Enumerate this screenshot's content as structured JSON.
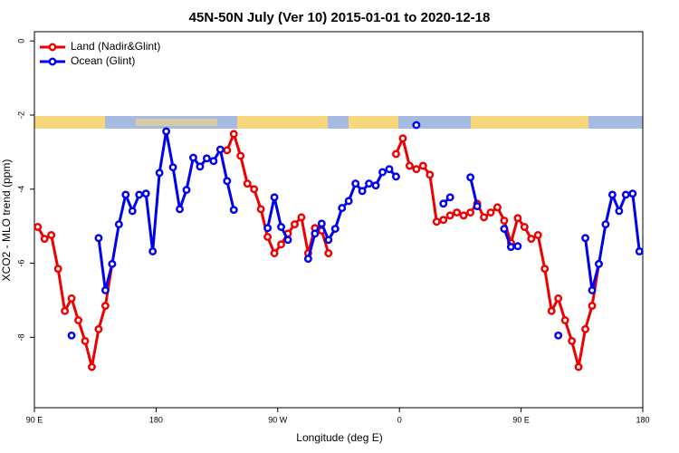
{
  "chart_data": {
    "type": "line",
    "title": "45N-50N July (Ver 10)   2015-01-01 to 2020-12-18",
    "x_label": "Longitude (deg E)",
    "y_label": "XCO2 - MLO trend (ppm)",
    "x": [
      92.5,
      97.5,
      102.5,
      107.5,
      112.5,
      117.5,
      122.5,
      127.5,
      132.5,
      137.5,
      142.5,
      147.5,
      152.5,
      157.5,
      162.5,
      167.5,
      172.5,
      177.5,
      182.5,
      187.5,
      192.5,
      197.5,
      202.5,
      207.5,
      212.5,
      217.5,
      222.5,
      227.5,
      232.5,
      237.5,
      242.5,
      247.5,
      252.5,
      257.5,
      262.5,
      267.5,
      272.5,
      277.5,
      282.5,
      287.5,
      292.5,
      297.5,
      302.5,
      307.5,
      312.5,
      317.5,
      322.5,
      327.5,
      332.5,
      337.5,
      342.5,
      347.5,
      352.5,
      357.5,
      362.5,
      367.5,
      372.5,
      377.5,
      382.5,
      387.5,
      392.5,
      397.5,
      402.5,
      407.5,
      412.5,
      417.5,
      422.5,
      427.5,
      432.5,
      437.5,
      442.5,
      447.5,
      452.5,
      457.5,
      462.5,
      467.5,
      472.5,
      477.5,
      482.5,
      487.5,
      492.5,
      497.5,
      502.5,
      507.5,
      512.5,
      517.5,
      522.5,
      527.5,
      532.5,
      537.5
    ],
    "series": [
      {
        "name": "Land (Nadir&Glint)",
        "color": "#ee0000",
        "values": [
          -5.02,
          -5.34,
          -5.24,
          -6.15,
          -7.29,
          -6.95,
          -7.54,
          -8.1,
          -8.8,
          -7.78,
          -7.15,
          -6.02,
          null,
          null,
          null,
          null,
          null,
          null,
          null,
          null,
          null,
          null,
          null,
          null,
          null,
          null,
          null,
          null,
          -2.95,
          -2.51,
          -3.1,
          -3.85,
          -4.0,
          -4.54,
          -5.29,
          -5.73,
          -5.49,
          -5.2,
          -4.95,
          -4.76,
          -5.73,
          -5.05,
          -5.12,
          -5.73,
          null,
          null,
          null,
          null,
          null,
          null,
          null,
          null,
          null,
          -3.05,
          -2.63,
          -3.37,
          -3.46,
          -3.37,
          -3.61,
          -4.88,
          -4.83,
          -4.71,
          -4.63,
          -4.71,
          -4.63,
          -4.39,
          -4.76,
          -4.63,
          -4.49,
          -4.85,
          -5.45,
          -4.78,
          -5.02,
          -5.34,
          -5.24,
          -6.15,
          -7.29,
          -6.95,
          -7.54,
          -8.1,
          -8.8,
          -7.78,
          -7.15,
          -6.02,
          null,
          null,
          null,
          null,
          null,
          null
        ]
      },
      {
        "name": "Ocean (Glint)",
        "color": "#0000ee",
        "values": [
          null,
          null,
          null,
          null,
          null,
          -7.95,
          null,
          null,
          null,
          -5.32,
          -6.73,
          -6.02,
          -4.95,
          -4.15,
          -4.59,
          -4.15,
          -4.12,
          -5.68,
          -3.56,
          -2.44,
          -3.41,
          -4.54,
          -4.02,
          -3.15,
          -3.39,
          -3.17,
          -3.24,
          -2.93,
          -3.78,
          -4.56,
          null,
          null,
          null,
          null,
          -5.05,
          -4.22,
          -5.02,
          -5.37,
          null,
          null,
          -5.88,
          -5.2,
          -4.93,
          -5.37,
          -5.07,
          -4.51,
          -4.32,
          -3.85,
          -4.05,
          -3.85,
          -3.9,
          -3.54,
          -3.46,
          -3.66,
          null,
          null,
          -2.27,
          null,
          null,
          null,
          -4.39,
          -4.22,
          null,
          null,
          -3.68,
          -4.46,
          null,
          null,
          null,
          -5.07,
          -5.56,
          -5.54,
          null,
          null,
          null,
          null,
          null,
          -7.95,
          null,
          null,
          null,
          -5.32,
          -6.73,
          -6.02,
          -4.95,
          -4.15,
          -4.59,
          -4.15,
          -4.12,
          -5.68
        ]
      }
    ],
    "xlim": [
      90,
      540
    ],
    "xticks": [
      {
        "value": 90,
        "label": "90 E"
      },
      {
        "value": 180,
        "label": "180"
      },
      {
        "value": 270,
        "label": "90 W"
      },
      {
        "value": 360,
        "label": "0"
      },
      {
        "value": 450,
        "label": "90 E"
      },
      {
        "value": 540,
        "label": "180"
      }
    ],
    "ylim": [
      -9.9,
      0.25
    ],
    "yticks": [
      0,
      -2,
      -4,
      -6,
      -8
    ],
    "legend": "top-left"
  }
}
